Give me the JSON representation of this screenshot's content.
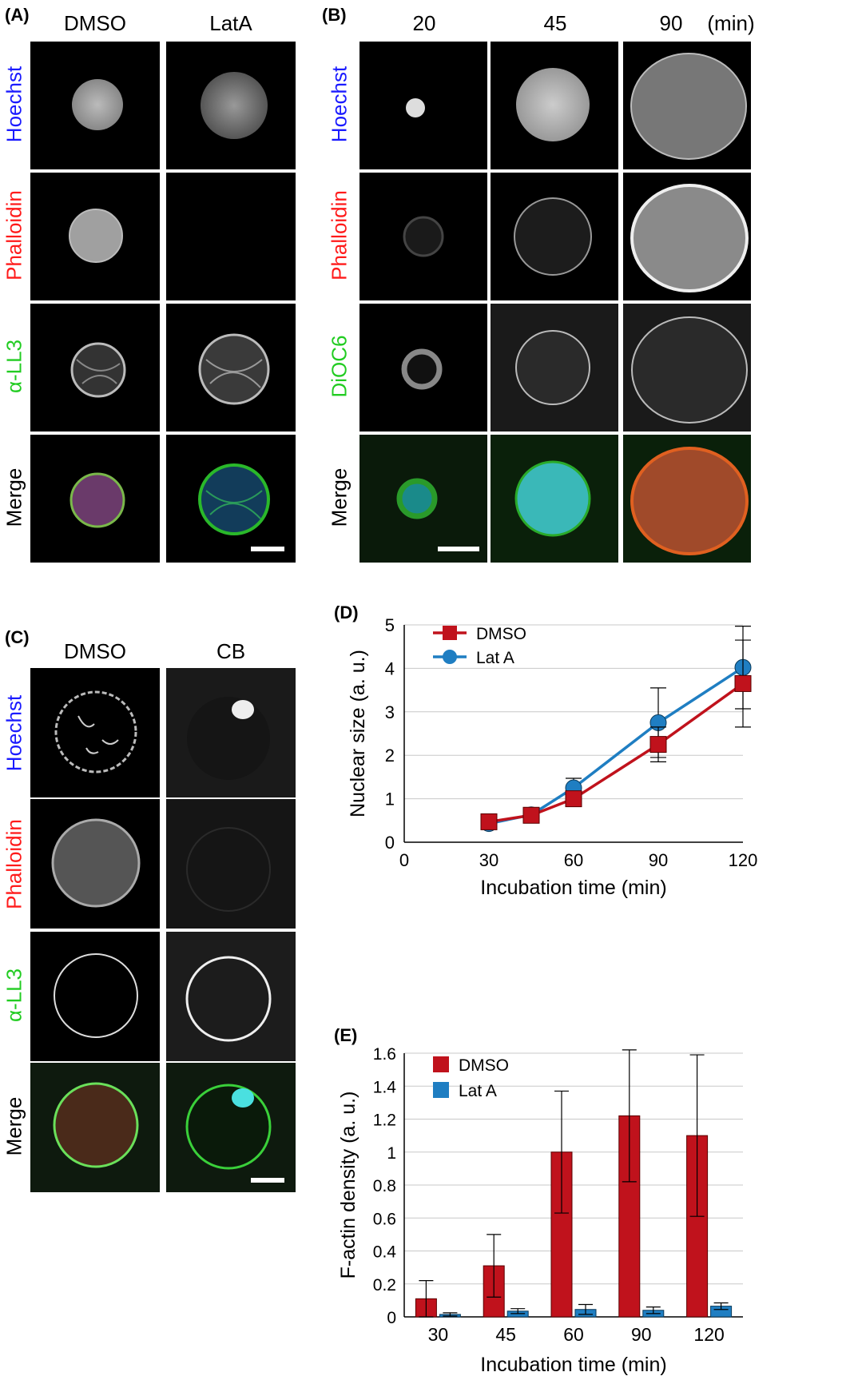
{
  "panelA": {
    "label": "(A)",
    "columns": [
      "DMSO",
      "LatA"
    ],
    "rows": [
      "Hoechst",
      "Phalloidin",
      "α-LL3",
      "Merge"
    ],
    "row_colors": [
      "#1a1aff",
      "#ff1a1a",
      "#22cc22",
      "#000000"
    ]
  },
  "panelB": {
    "label": "(B)",
    "columns": [
      "20",
      "45",
      "90"
    ],
    "unit": "(min)",
    "rows": [
      "Hoechst",
      "Phalloidin",
      "DiOC6",
      "Merge"
    ],
    "row_colors": [
      "#1a1aff",
      "#ff1a1a",
      "#22cc22",
      "#000000"
    ]
  },
  "panelC": {
    "label": "(C)",
    "columns": [
      "DMSO",
      "CB"
    ],
    "rows": [
      "Hoechst",
      "Phalloidin",
      "α-LL3",
      "Merge"
    ],
    "row_colors": [
      "#1a1aff",
      "#ff1a1a",
      "#22cc22",
      "#000000"
    ]
  },
  "panelD": {
    "label": "(D)",
    "chart_data": {
      "type": "line",
      "x": [
        30,
        45,
        60,
        90,
        120
      ],
      "xlim": [
        0,
        120
      ],
      "xticks": [
        "0",
        "30",
        "60",
        "90",
        "120"
      ],
      "ylim": [
        0,
        5
      ],
      "yticks": [
        "0",
        "1",
        "2",
        "3",
        "4",
        "5"
      ],
      "xlabel": "Incubation time (min)",
      "ylabel": "Nuclear size (a. u.)",
      "series": [
        {
          "name": "DMSO",
          "color": "#c0121c",
          "marker": "square",
          "values": [
            0.47,
            0.62,
            1.0,
            2.25,
            3.65
          ],
          "errors": [
            0.05,
            0.05,
            0.1,
            0.4,
            1.0
          ]
        },
        {
          "name": "Lat A",
          "color": "#1f7ec2",
          "marker": "circle",
          "values": [
            0.43,
            0.63,
            1.25,
            2.75,
            4.02
          ],
          "errors": [
            0.05,
            0.05,
            0.22,
            0.8,
            0.95
          ]
        }
      ],
      "legend": "top-left",
      "grid": true
    }
  },
  "panelE": {
    "label": "(E)",
    "chart_data": {
      "type": "bar",
      "categories": [
        "30",
        "45",
        "60",
        "90",
        "120"
      ],
      "ylim": [
        0,
        1.6
      ],
      "yticks": [
        "0",
        "0.2",
        "0.4",
        "0.6",
        "0.8",
        "1",
        "1.2",
        "1.4",
        "1.6"
      ],
      "xlabel": "Incubation time (min)",
      "ylabel": "F-actin density (a. u.)",
      "series": [
        {
          "name": "DMSO",
          "color": "#c0121c",
          "values": [
            0.11,
            0.31,
            1.0,
            1.22,
            1.1
          ],
          "errors": [
            0.11,
            0.19,
            0.37,
            0.4,
            0.49
          ]
        },
        {
          "name": "Lat A",
          "color": "#1f7ec2",
          "values": [
            0.015,
            0.035,
            0.045,
            0.04,
            0.065
          ],
          "errors": [
            0.01,
            0.015,
            0.03,
            0.02,
            0.02
          ]
        }
      ],
      "legend": "top-left",
      "grid": true
    }
  }
}
